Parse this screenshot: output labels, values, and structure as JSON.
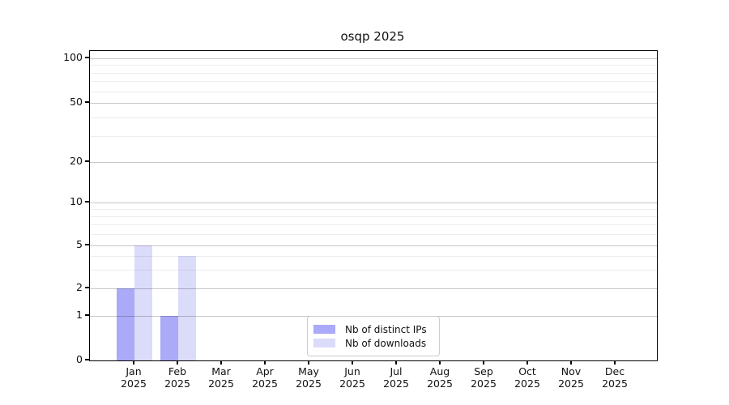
{
  "chart_data": {
    "type": "bar",
    "title": "osqp 2025",
    "categories": [
      "Jan",
      "Feb",
      "Mar",
      "Apr",
      "May",
      "Jun",
      "Jul",
      "Aug",
      "Sep",
      "Oct",
      "Nov",
      "Dec"
    ],
    "category_year": "2025",
    "series": [
      {
        "name": "Nb of distinct IPs",
        "color": "#aaaaf8",
        "values": [
          2,
          1,
          0,
          0,
          0,
          0,
          0,
          0,
          0,
          0,
          0,
          0
        ]
      },
      {
        "name": "Nb of downloads",
        "color": "#dbdbfa",
        "values": [
          5,
          4,
          0,
          0,
          0,
          0,
          0,
          0,
          0,
          0,
          0,
          0
        ]
      }
    ],
    "xlabel": "",
    "ylabel": "",
    "y_axis": {
      "scale": "log-like with zero baseline",
      "ticks": [
        100,
        50,
        20,
        10,
        5,
        2,
        1,
        0
      ],
      "minor_gridline_values": [
        3,
        4,
        6,
        7,
        8,
        9,
        30,
        40,
        60,
        70,
        80,
        90
      ],
      "top_value": 100,
      "bottom_value": 0
    },
    "grid": "horizontal, major and minor, drawn over bars",
    "legend_position": "lower center"
  },
  "colors": {
    "background": "#ffffff",
    "spine": "#000000",
    "text": "#111111",
    "legend_border": "#cccccc"
  }
}
